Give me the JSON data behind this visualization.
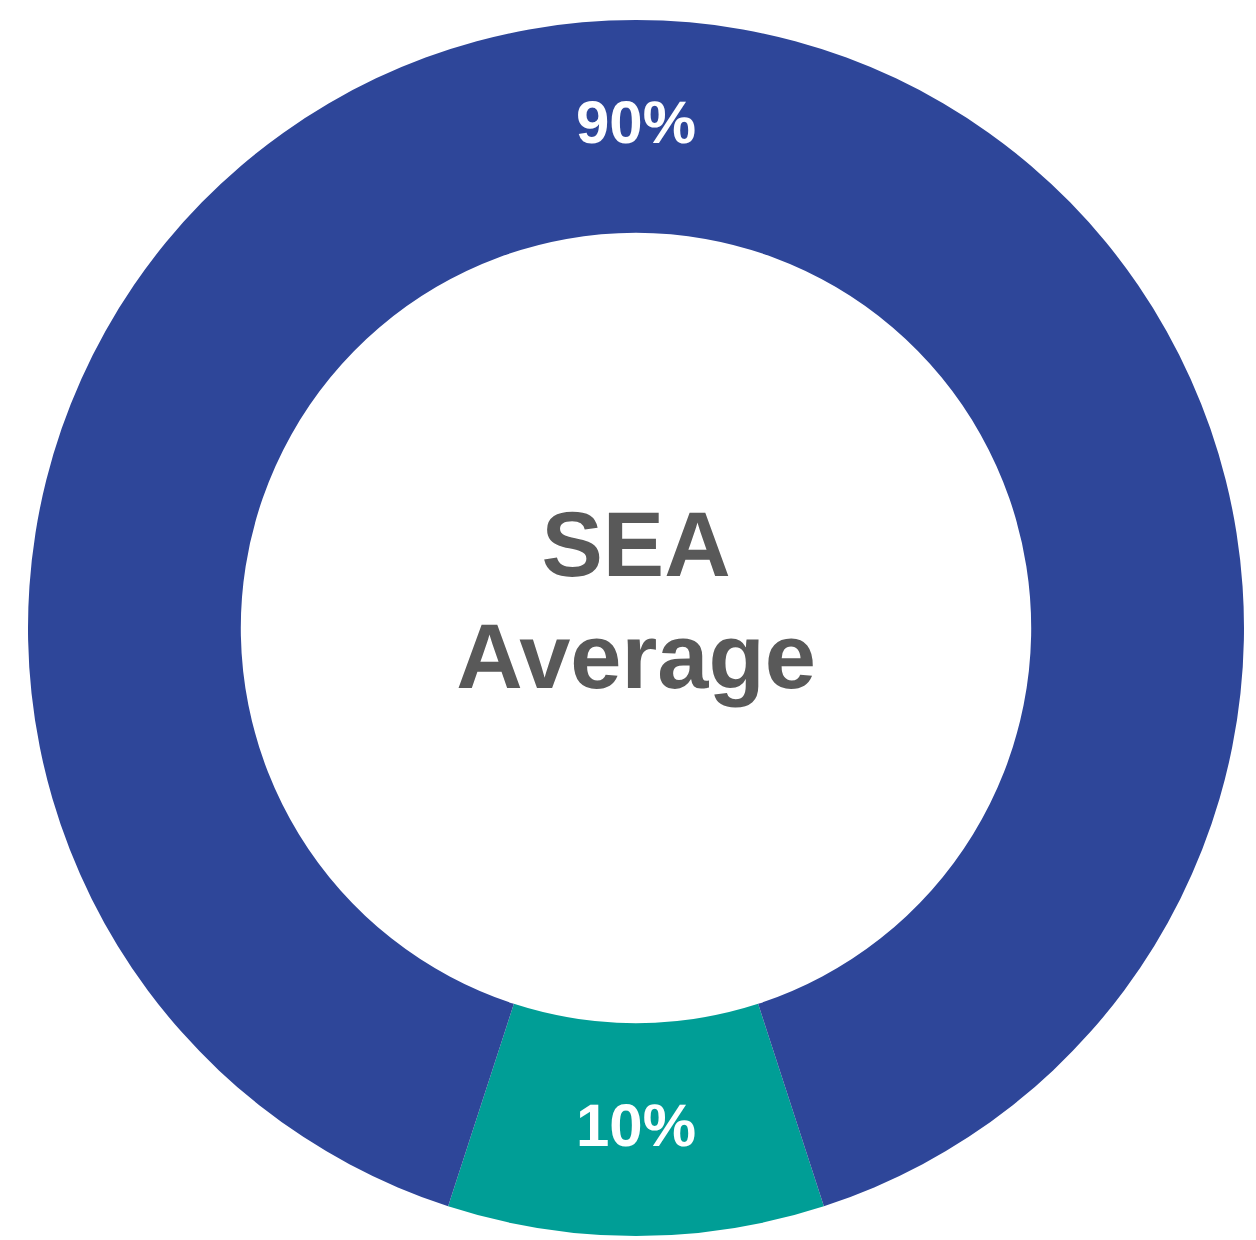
{
  "chart_data": {
    "type": "donut",
    "title": "SEA Average",
    "categories": [
      null,
      null
    ],
    "values": [
      10,
      90
    ],
    "value_labels": [
      "10%",
      "90%"
    ],
    "colors": [
      "#009e96",
      "#2e4699"
    ],
    "legend": false
  }
}
